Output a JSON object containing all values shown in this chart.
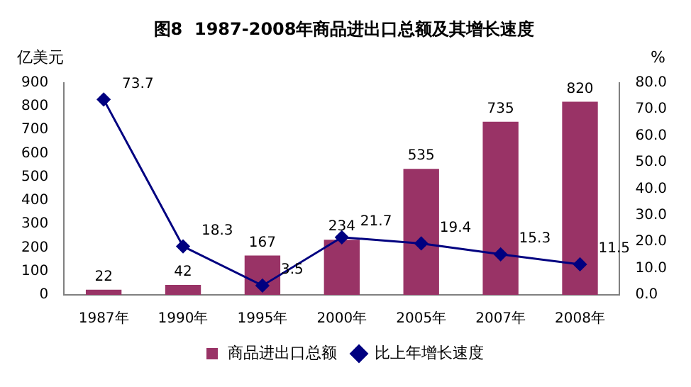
{
  "chart_data": {
    "type": "bar",
    "title": "图8  1987-2008年商品进出口总额及其增长速度",
    "ylabel": "亿美元",
    "y2label": "%",
    "categories": [
      "1987年",
      "1990年",
      "1995年",
      "2000年",
      "2005年",
      "2007年",
      "2008年"
    ],
    "series": [
      {
        "name": "商品进出口总额",
        "color": "#993366",
        "values": [
          22,
          42,
          167,
          234,
          535,
          735,
          820
        ]
      },
      {
        "name": "比上年增长速度",
        "type": "line",
        "axis": "y2",
        "color": "#000080",
        "marker": "diamond",
        "values": [
          73.7,
          18.3,
          3.5,
          21.7,
          19.4,
          15.3,
          11.5
        ]
      }
    ],
    "ylim": [
      0,
      900
    ],
    "yticks": [
      0,
      100,
      200,
      300,
      400,
      500,
      600,
      700,
      800,
      900
    ],
    "y2lim": [
      0,
      80
    ],
    "y2ticks": [
      {
        "value": 0,
        "label": "0.0"
      },
      {
        "value": 10,
        "label": "10.0"
      },
      {
        "value": 20,
        "label": "20.0"
      },
      {
        "value": 30,
        "label": "30.0"
      },
      {
        "value": 40,
        "label": "40.0"
      },
      {
        "value": 50,
        "label": "50.0"
      },
      {
        "value": 60,
        "label": "60.0"
      },
      {
        "value": 70,
        "label": "70.0"
      },
      {
        "value": 80,
        "label": "80.0"
      }
    ],
    "grid": false,
    "legend": "bottom",
    "data_labels": true
  }
}
